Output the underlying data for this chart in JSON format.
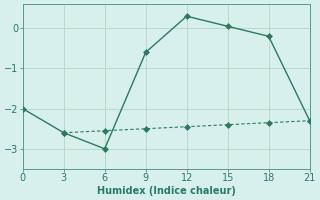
{
  "xlabel": "Humidex (Indice chaleur)",
  "x": [
    0,
    3,
    6,
    9,
    12,
    15,
    18,
    21
  ],
  "y_main": [
    -2.0,
    -2.6,
    -3.0,
    -0.6,
    0.3,
    0.05,
    -0.2,
    -2.3
  ],
  "x_sec": [
    3,
    6,
    9,
    12,
    15,
    18,
    21
  ],
  "y_sec": [
    -2.6,
    -2.55,
    -2.5,
    -2.45,
    -2.4,
    -2.35,
    -2.3
  ],
  "line_color": "#2a7a62",
  "bg_color": "#d8f0ec",
  "grid_color": "#b8d8d0",
  "xlim": [
    0,
    21
  ],
  "ylim": [
    -3.5,
    0.6
  ],
  "xticks": [
    0,
    3,
    6,
    9,
    12,
    15,
    18,
    21
  ],
  "yticks": [
    -3,
    -2,
    -1,
    0
  ],
  "marker_size": 3,
  "linewidth": 1.0,
  "tick_fontsize": 7,
  "xlabel_fontsize": 7
}
